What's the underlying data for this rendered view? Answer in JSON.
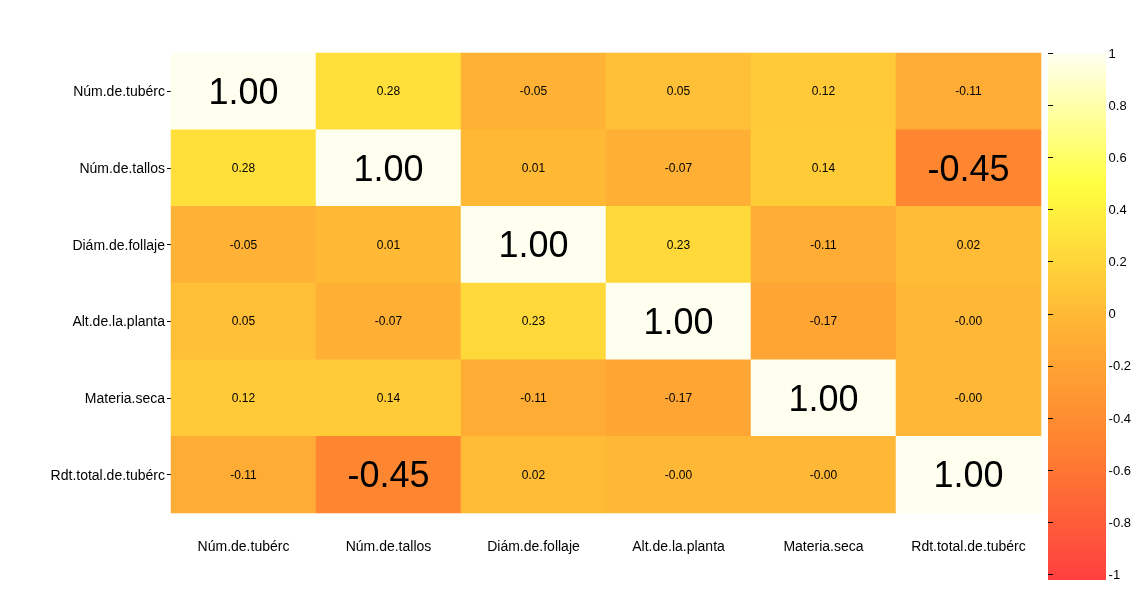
{
  "chart_data": {
    "type": "heatmap",
    "categories": [
      "Núm.de.tubérc",
      "Núm.de.tallos",
      "Diám.de.follaje",
      "Alt.de.la.planta",
      "Materia.seca",
      "Rdt.total.de.tubérc"
    ],
    "y_categories": [
      "Núm.de.tubérc",
      "Núm.de.tallos",
      "Diám.de.follaje",
      "Alt.de.la.planta",
      "Materia.seca",
      "Rdt.total.de.tubérc"
    ],
    "cells": [
      [
        1.0,
        0.28,
        -0.05,
        0.05,
        0.12,
        -0.11
      ],
      [
        0.28,
        1.0,
        0.01,
        -0.07,
        0.14,
        -0.45
      ],
      [
        -0.05,
        0.01,
        1.0,
        0.23,
        -0.11,
        0.02
      ],
      [
        0.05,
        -0.07,
        0.23,
        1.0,
        -0.17,
        0.0
      ],
      [
        0.12,
        0.14,
        -0.11,
        -0.17,
        1.0,
        0.0
      ],
      [
        -0.11,
        -0.45,
        0.02,
        0.0,
        0.0,
        1.0
      ]
    ],
    "cell_labels": [
      [
        "1.00",
        "0.28",
        "-0.05",
        "0.05",
        "0.12",
        "-0.11"
      ],
      [
        "0.28",
        "1.00",
        "0.01",
        "-0.07",
        "0.14",
        "-0.45"
      ],
      [
        "-0.05",
        "0.01",
        "1.00",
        "0.23",
        "-0.11",
        "0.02"
      ],
      [
        "0.05",
        "-0.07",
        "0.23",
        "1.00",
        "-0.17",
        "-0.00"
      ],
      [
        "0.12",
        "0.14",
        "-0.11",
        "-0.17",
        "1.00",
        "-0.00"
      ],
      [
        "-0.11",
        "-0.45",
        "0.02",
        "-0.00",
        "-0.00",
        "1.00"
      ]
    ],
    "clim": [
      -1,
      1
    ],
    "cticks": [
      -1,
      -0.8,
      -0.6,
      -0.4,
      -0.2,
      0,
      0.2,
      0.4,
      0.6,
      0.8,
      1
    ]
  }
}
